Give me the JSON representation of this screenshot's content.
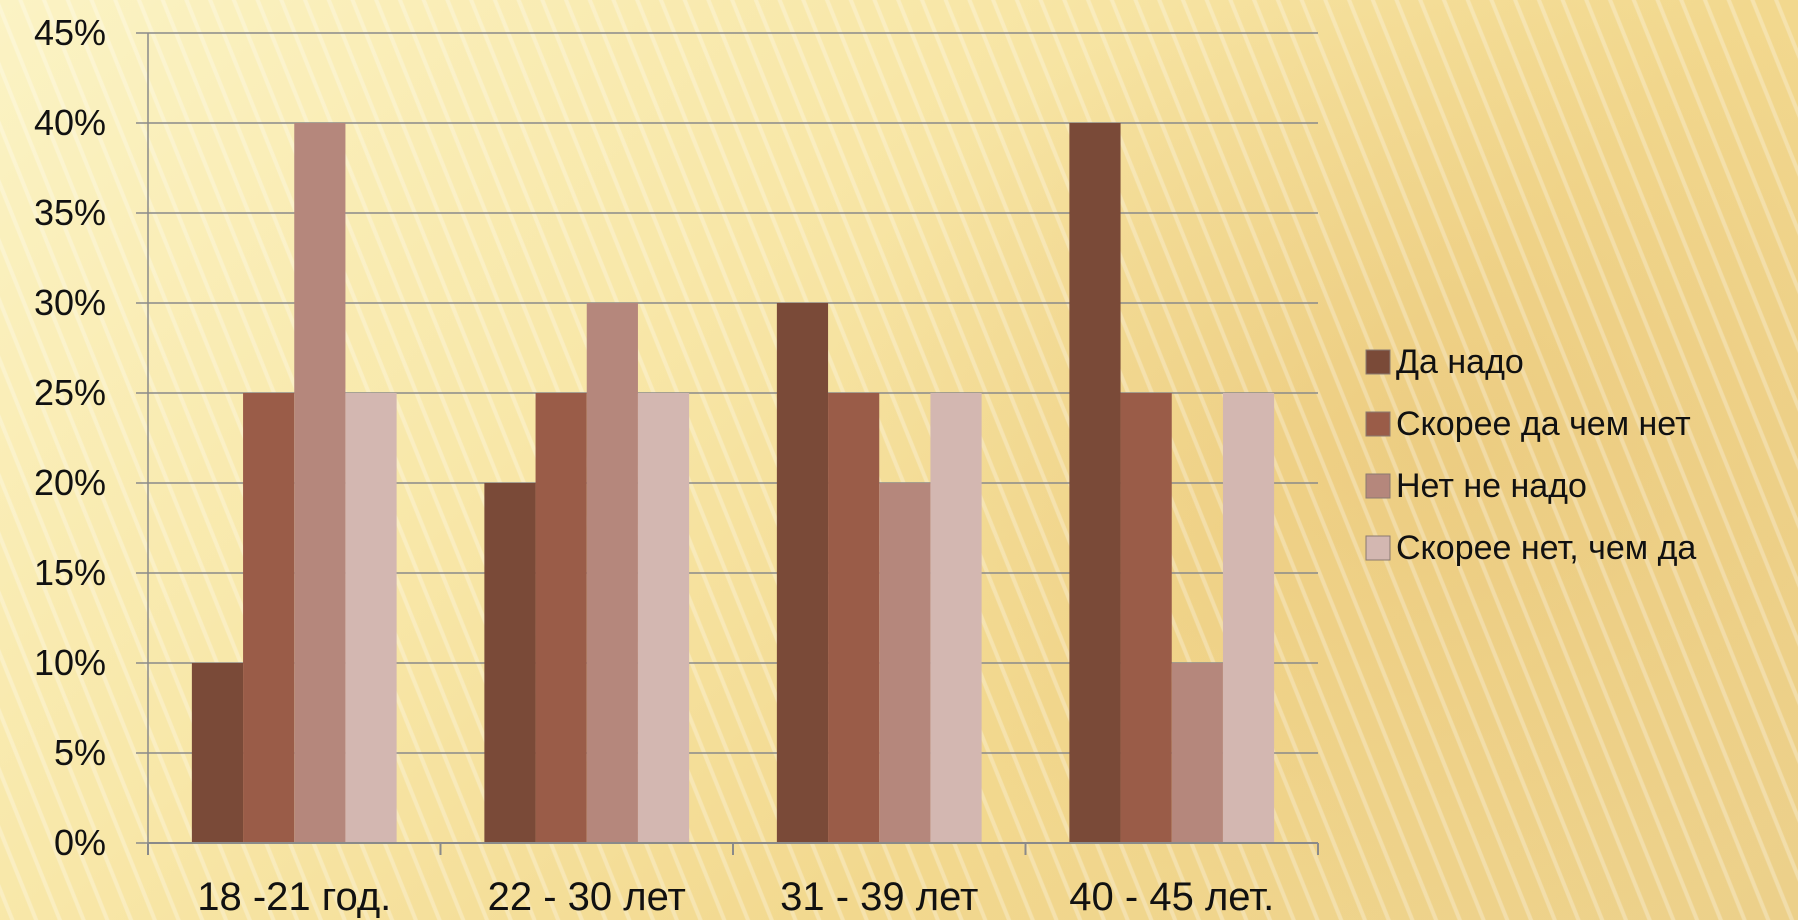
{
  "chart_data": {
    "type": "bar",
    "categories": [
      "18 -21 год.",
      "22 - 30 лет",
      "31 - 39 лет",
      "40 - 45 лет."
    ],
    "series": [
      {
        "name": "Да надо",
        "values": [
          10,
          20,
          30,
          40
        ],
        "color": "#7a4a38"
      },
      {
        "name": "Скорее да чем нет",
        "values": [
          25,
          25,
          25,
          25
        ],
        "color": "#9a5c48"
      },
      {
        "name": "Нет не надо",
        "values": [
          40,
          30,
          20,
          10
        ],
        "color": "#b5877c"
      },
      {
        "name": "Скорее нет, чем да",
        "values": [
          25,
          25,
          25,
          25
        ],
        "color": "#d3b7b1"
      }
    ],
    "y_ticks": [
      "0%",
      "5%",
      "10%",
      "15%",
      "20%",
      "25%",
      "30%",
      "35%",
      "40%",
      "45%"
    ],
    "ylim": [
      0,
      45
    ],
    "y_unit": "%",
    "grid": true,
    "legend_position": "right",
    "gridline_color": "#8a8a8a"
  }
}
